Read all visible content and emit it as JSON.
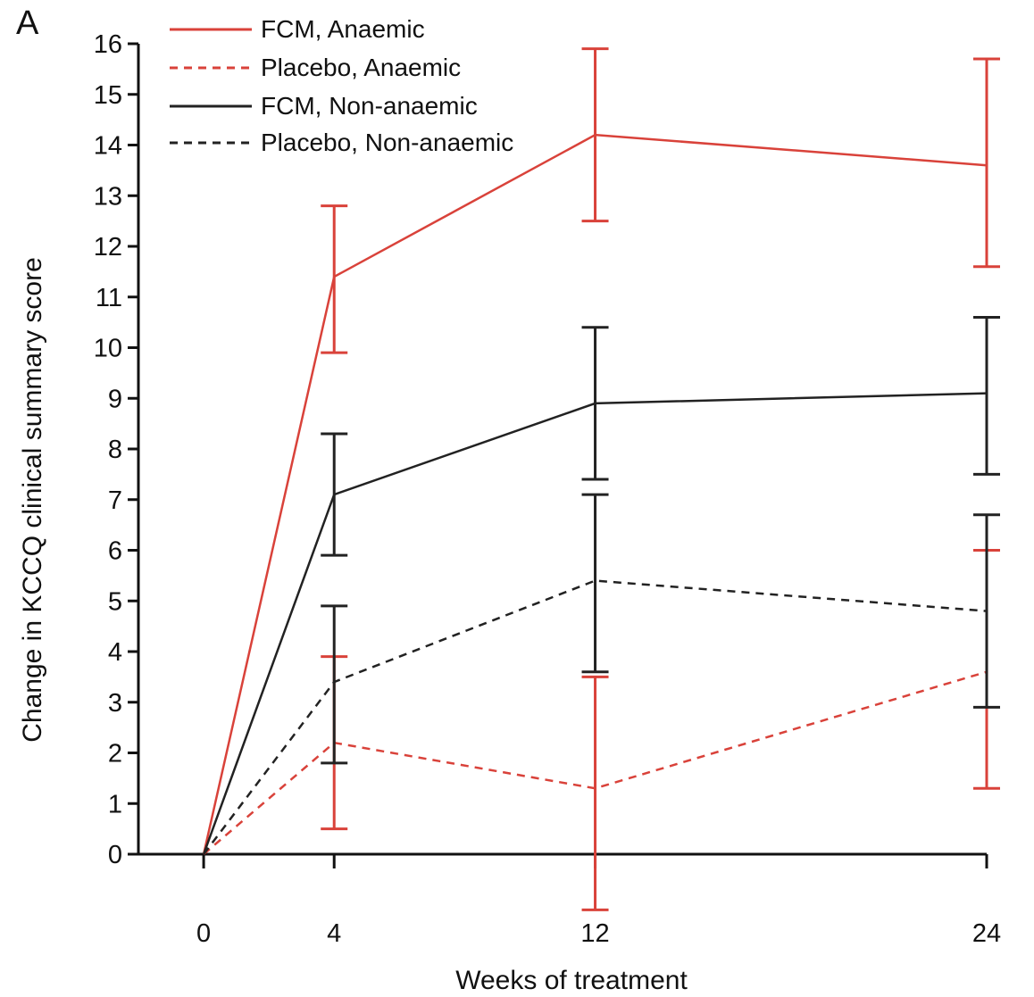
{
  "panel_label": "A",
  "colors": {
    "anaemic": "#d9423a",
    "non_anaemic": "#222222",
    "axis": "#111111"
  },
  "chart_data": {
    "type": "line",
    "xlabel": "Weeks of treatment",
    "ylabel": "Change in KCCQ clinical summary score",
    "x": [
      0,
      4,
      12,
      24
    ],
    "xlim": [
      -2,
      24
    ],
    "ylim": [
      0,
      16
    ],
    "yticks": [
      0,
      1,
      2,
      3,
      4,
      5,
      6,
      7,
      8,
      9,
      10,
      11,
      12,
      13,
      14,
      15,
      16
    ],
    "grid": false,
    "legend_position": "top-left",
    "series": [
      {
        "name": "FCM, Anaemic",
        "color": "#d9423a",
        "dash": "solid",
        "values": [
          0,
          11.4,
          14.2,
          13.6
        ],
        "error_low": [
          null,
          9.9,
          12.5,
          11.6
        ],
        "error_high": [
          null,
          12.8,
          15.9,
          15.7
        ]
      },
      {
        "name": "Placebo, Anaemic",
        "color": "#d9423a",
        "dash": "dashed",
        "values": [
          0,
          2.2,
          1.3,
          3.6
        ],
        "error_low": [
          null,
          0.5,
          -1.1,
          1.3
        ],
        "error_high": [
          null,
          3.9,
          3.5,
          6.0
        ]
      },
      {
        "name": "FCM, Non-anaemic",
        "color": "#222222",
        "dash": "solid",
        "values": [
          0,
          7.1,
          8.9,
          9.1
        ],
        "error_low": [
          null,
          5.9,
          7.4,
          7.5
        ],
        "error_high": [
          null,
          8.3,
          10.4,
          10.6
        ]
      },
      {
        "name": "Placebo, Non-anaemic",
        "color": "#222222",
        "dash": "dashed",
        "values": [
          0,
          3.4,
          5.4,
          4.8
        ],
        "error_low": [
          null,
          1.8,
          3.6,
          2.9
        ],
        "error_high": [
          null,
          4.9,
          7.1,
          6.7
        ]
      }
    ]
  }
}
